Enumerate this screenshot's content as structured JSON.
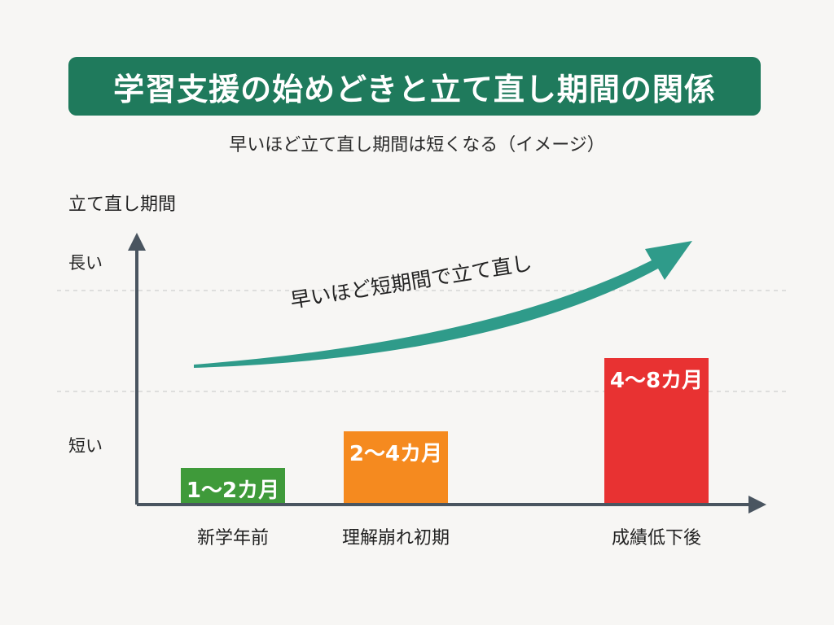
{
  "title": "学習支援の始めどきと立て直し期間の関係",
  "subtitle": "早いほど立て直し期間は短くなる（イメージ）",
  "colors": {
    "title_bg": "#1f7a5c",
    "axis": "#4a5560",
    "arrow": "#2f9b8a",
    "bar_green": "#3f9a3a",
    "bar_orange": "#f58a1f",
    "bar_red": "#e83232"
  },
  "chart_data": {
    "type": "bar",
    "ylabel": "立て直し期間",
    "y_ticks": [
      "長い",
      "短い"
    ],
    "grid": true,
    "categories": [
      "新学年前",
      "理解崩れ初期",
      "成績低下後"
    ],
    "values": [
      1.5,
      3,
      6
    ],
    "value_ranges": [
      [
        1,
        2
      ],
      [
        2,
        4
      ],
      [
        4,
        8
      ]
    ],
    "data_labels": [
      "1〜2カ月",
      "2〜4カ月",
      "4〜8カ月"
    ],
    "bar_colors": [
      "#3f9a3a",
      "#f58a1f",
      "#e83232"
    ],
    "ylim": [
      0,
      8
    ],
    "annotation": "早いほど短期間で立て直し"
  }
}
